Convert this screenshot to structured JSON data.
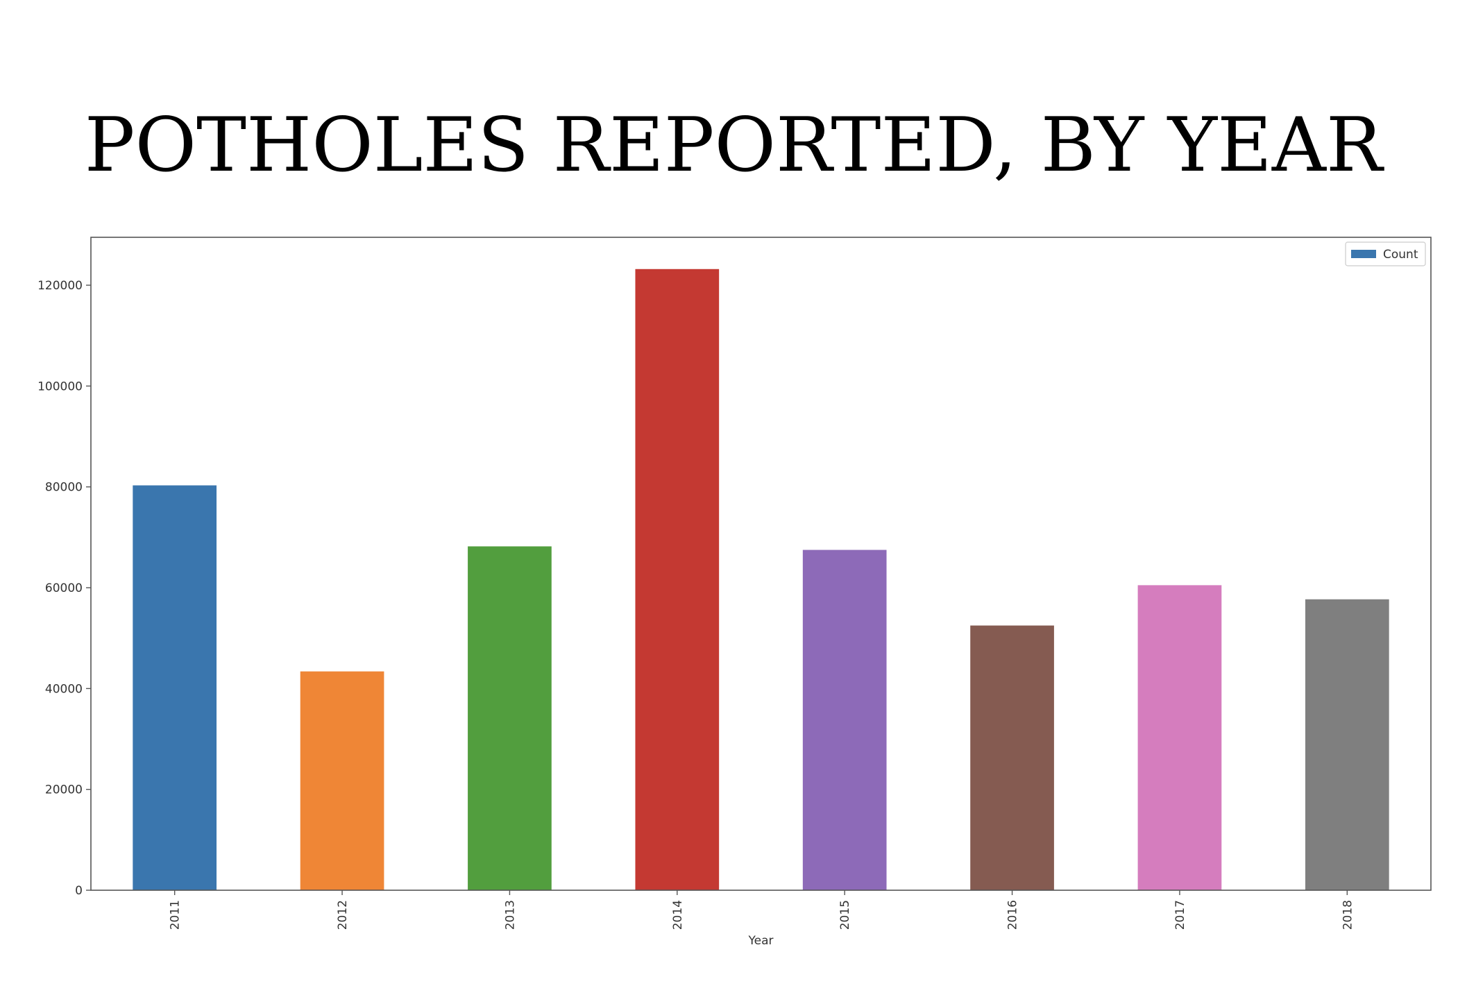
{
  "chart_data": {
    "type": "bar",
    "title": "POTHOLES REPORTED, BY YEAR",
    "xlabel": "Year",
    "ylabel": "",
    "categories": [
      "2011",
      "2012",
      "2013",
      "2014",
      "2015",
      "2016",
      "2017",
      "2018"
    ],
    "series": [
      {
        "name": "Count",
        "values": [
          80300,
          43400,
          68200,
          123200,
          67500,
          52500,
          60500,
          57700
        ]
      }
    ],
    "bar_colors": [
      "#3a76ae",
      "#ef8636",
      "#529e3e",
      "#c43932",
      "#8d6ab8",
      "#855b51",
      "#d57dbe",
      "#7f7f7f"
    ],
    "legend_color": "#3a76ae",
    "ylim": [
      0,
      129500
    ],
    "yticks": [
      "0",
      "20000",
      "40000",
      "60000",
      "80000",
      "100000",
      "120000"
    ],
    "legend_position": "top-right",
    "grid": false
  }
}
